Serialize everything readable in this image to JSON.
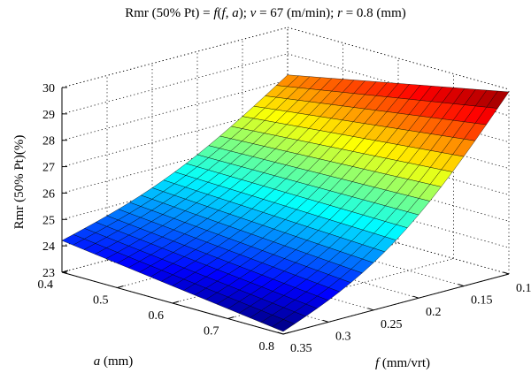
{
  "chart_data": {
    "type": "surface",
    "title": "Rmr (50% Pt) = f(f, a); v = 67 (m/min); r = 0.8 (mm)",
    "title_parts": {
      "lhs": "Rmr (50% Pt) = ",
      "f1": "f",
      "args_open": "(",
      "f2": "f",
      "args_sep": ", ",
      "a": "a",
      "args_close": ");",
      "v": "v",
      "v_val": " = 67 (m/min);",
      "r": "r",
      "r_val": " = 0.8 (mm)"
    },
    "xlabel": {
      "symbol": "f",
      "unit": " (mm/vrt)"
    },
    "ylabel": {
      "symbol": "a",
      "unit": " (mm)"
    },
    "zlabel": "Rmr (50% Pt)(%)",
    "f_ticks": [
      "0.1",
      "0.15",
      "0.2",
      "0.25",
      "0.3",
      "0.35"
    ],
    "a_ticks": [
      "0.4",
      "0.5",
      "0.6",
      "0.7",
      "0.8"
    ],
    "z_ticks": [
      "23",
      "24",
      "25",
      "26",
      "27",
      "28",
      "29",
      "30"
    ],
    "f_range": [
      0.1,
      0.35
    ],
    "a_range": [
      0.4,
      0.8
    ],
    "z_range": [
      23,
      30
    ],
    "grid": true,
    "colormap": "jet",
    "grid_points": 21,
    "corner_values": {
      "f0.1_a0.4": 28.2,
      "f0.1_a0.8": 29.9,
      "f0.35_a0.4": 24.2,
      "f0.35_a0.8": 23.1
    }
  }
}
